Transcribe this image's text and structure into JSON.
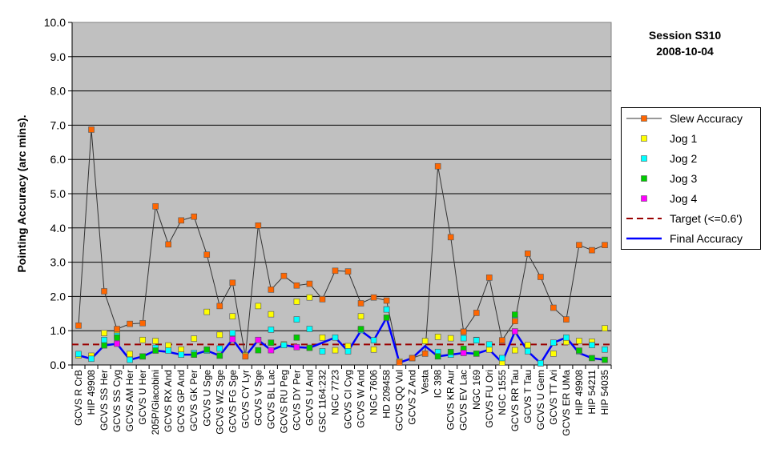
{
  "title": {
    "line1": "Session S310",
    "line2": "2008-10-04"
  },
  "chart_data": {
    "type": "line",
    "ylabel": "Pointing Accuracy (arc mins).",
    "xlabel": "",
    "ylim": [
      0,
      10
    ],
    "yticks": [
      "0.0",
      "1.0",
      "2.0",
      "3.0",
      "4.0",
      "5.0",
      "6.0",
      "7.0",
      "8.0",
      "9.0",
      "10.0"
    ],
    "grid": true,
    "legend_position": "right",
    "colors": {
      "plot_bg": "#c0c0c0",
      "slew": "#ff6600",
      "slew_line": "#333333",
      "jog1": "#ffff00",
      "jog2": "#00ffff",
      "jog3": "#00cc00",
      "jog4": "#ff00ff",
      "target": "#990000",
      "final": "#0000ff"
    },
    "categories": [
      "GCVS R CrB",
      "HIP 49908",
      "GCVS SS Her",
      "GCVS SS Cyg",
      "GCVS AM Her",
      "GCVS U Her",
      "205P/Giacobini",
      "GCVS RX And",
      "GCVS GP And",
      "GCVS GK Per",
      "GCVS U Sge",
      "GCVS WZ Sge",
      "GCVS FG Sge",
      "GCVS CY Lyr",
      "GCVS V Sge",
      "GCVS BL Lac",
      "GCVS RU Peg",
      "GCVS DY Per",
      "GCVS U And",
      "GSC 1164:232",
      "NGC 7723",
      "GCVS CI Cyg",
      "GCVS W And",
      "NGC 7606",
      "HD 209458",
      "GCVS QQ Vul",
      "GCVS Z And",
      "Vesta",
      "IC 398",
      "GCVS KR Aur",
      "GCVS EV Lac",
      "NGC 169",
      "GCVS FU Ori",
      "NGC 1555",
      "GCVS RR Tau",
      "GCVS T Tau",
      "GCVS U Gem",
      "GCVS TT Ari",
      "GCVS ER UMa",
      "HIP 49908",
      "HIP 54211",
      "HIP 54035"
    ],
    "series": [
      {
        "name": "Slew Accuracy",
        "key": "slew",
        "values": [
          1.15,
          6.87,
          2.15,
          1.05,
          1.2,
          1.22,
          4.63,
          3.52,
          4.22,
          4.33,
          3.22,
          1.72,
          2.4,
          0.25,
          4.07,
          2.2,
          2.6,
          2.32,
          2.37,
          1.92,
          2.75,
          2.73,
          1.8,
          1.97,
          1.88,
          0.07,
          0.2,
          0.33,
          5.8,
          3.73,
          0.97,
          1.52,
          2.55,
          0.72,
          1.28,
          3.25,
          2.57,
          1.67,
          1.33,
          3.5,
          3.35,
          3.5
        ]
      },
      {
        "name": "Jog 1",
        "key": "jog1",
        "values": [
          0.28,
          0.27,
          0.93,
          1.02,
          0.32,
          0.73,
          0.7,
          0.57,
          0.45,
          0.77,
          1.55,
          0.88,
          1.42,
          0.28,
          1.72,
          1.48,
          0.6,
          1.85,
          1.97,
          0.8,
          0.43,
          0.55,
          1.42,
          0.45,
          1.62,
          0.1,
          0.2,
          0.7,
          0.82,
          0.78,
          0.97,
          0.73,
          0.45,
          0.07,
          0.43,
          0.58,
          0.05,
          0.33,
          0.67,
          0.7,
          0.68,
          1.07
        ]
      },
      {
        "name": "Jog 2",
        "key": "jog2",
        "values": [
          0.32,
          0.18,
          0.73,
          0.85,
          0.15,
          0.25,
          0.5,
          0.42,
          0.3,
          0.35,
          0.42,
          0.48,
          0.93,
          null,
          0.73,
          1.03,
          0.58,
          1.33,
          1.05,
          0.4,
          0.8,
          0.4,
          1.02,
          0.72,
          1.62,
          null,
          null,
          null,
          0.38,
          0.3,
          0.78,
          0.72,
          0.6,
          0.2,
          1.33,
          0.4,
          0.05,
          0.65,
          0.8,
          0.4,
          0.58,
          0.45
        ]
      },
      {
        "name": "Jog 3",
        "key": "jog3",
        "values": [
          null,
          null,
          0.57,
          0.8,
          null,
          0.25,
          0.42,
          null,
          null,
          0.3,
          0.45,
          0.27,
          null,
          null,
          0.43,
          0.65,
          null,
          0.8,
          0.5,
          null,
          null,
          null,
          1.05,
          null,
          1.38,
          null,
          null,
          null,
          0.25,
          0.38,
          0.47,
          0.33,
          null,
          null,
          1.47,
          null,
          null,
          null,
          null,
          0.42,
          0.2,
          0.15
        ]
      },
      {
        "name": "Jog 4",
        "key": "jog4",
        "values": [
          null,
          null,
          null,
          0.62,
          null,
          null,
          null,
          null,
          null,
          null,
          null,
          null,
          0.75,
          null,
          0.73,
          0.43,
          null,
          0.52,
          null,
          null,
          null,
          null,
          null,
          null,
          null,
          null,
          null,
          null,
          null,
          null,
          0.35,
          null,
          null,
          null,
          0.98,
          null,
          null,
          null,
          null,
          null,
          null,
          null
        ]
      },
      {
        "name": "Target (<=0.6')",
        "key": "target",
        "constant": 0.6
      },
      {
        "name": "Final Accuracy",
        "key": "final",
        "values": [
          0.28,
          0.18,
          0.57,
          0.62,
          0.15,
          0.25,
          0.42,
          0.38,
          0.3,
          0.3,
          0.42,
          0.27,
          0.75,
          0.25,
          0.73,
          0.43,
          0.58,
          0.52,
          0.5,
          0.65,
          0.8,
          0.4,
          1.0,
          0.72,
          1.38,
          0.07,
          0.2,
          0.55,
          0.25,
          0.3,
          0.35,
          0.33,
          0.45,
          0.07,
          0.98,
          0.4,
          0.05,
          0.65,
          0.8,
          0.35,
          0.2,
          0.15
        ]
      }
    ]
  }
}
